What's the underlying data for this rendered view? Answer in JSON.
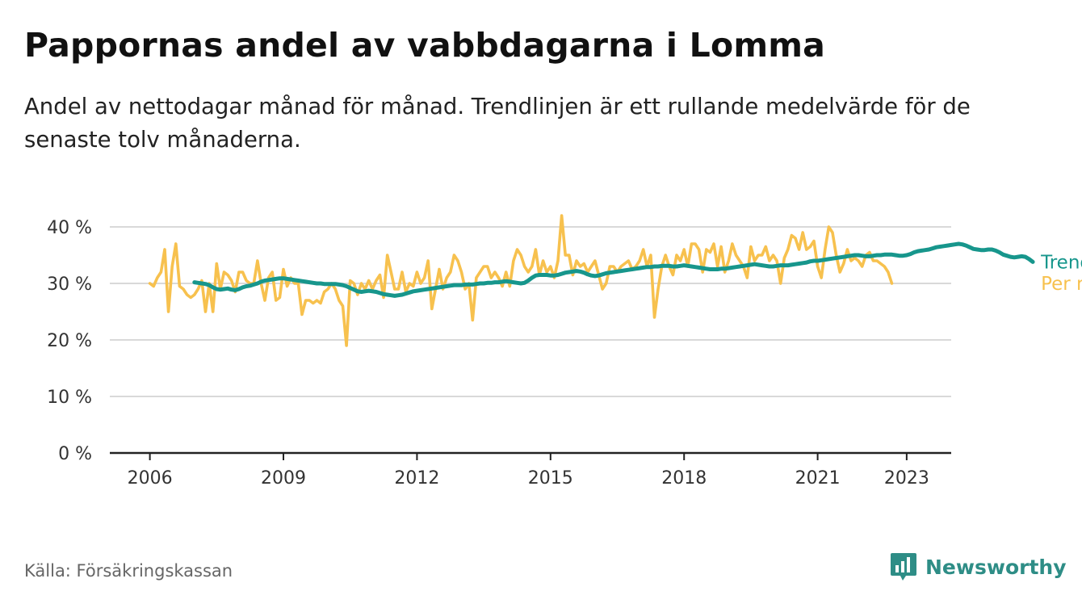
{
  "header": {
    "title": "Pappornas andel av vabbdagarna i Lomma",
    "subtitle": "Andel av nettodagar månad för månad. Trendlinjen är ett rullande medelvärde för de senaste tolv månaderna."
  },
  "footer": {
    "source": "Källa: Försäkringskassan",
    "brand": "Newsworthy",
    "brand_icon": "newsworthy-logo-icon"
  },
  "colors": {
    "monthly": "#f7c14e",
    "trend": "#17968c",
    "grid": "#d9d9d9",
    "axis": "#222222",
    "brand": "#2e8d86"
  },
  "chart_data": {
    "type": "line",
    "title": "Pappornas andel av vabbdagarna i Lomma",
    "xlabel": "",
    "ylabel": "",
    "x_start": "2006-01",
    "x_step": "month",
    "xlim": [
      2005.1,
      2024.0
    ],
    "ylim": [
      0,
      40
    ],
    "x_ticks": [
      2006,
      2009,
      2012,
      2015,
      2018,
      2021,
      2023
    ],
    "x_tick_labels": [
      "2006",
      "2009",
      "2012",
      "2015",
      "2018",
      "2021",
      "2023"
    ],
    "y_ticks": [
      0,
      10,
      20,
      30,
      40
    ],
    "y_tick_labels": [
      "0 %",
      "10 %",
      "20 %",
      "30 %",
      "40 %"
    ],
    "grid": true,
    "legend": "direct labels at line ends",
    "series": [
      {
        "name": "Per månad",
        "color": "#f7c14e",
        "values": [
          30,
          29.5,
          31,
          32,
          36,
          25,
          33,
          37,
          29.5,
          29,
          28,
          27.5,
          28,
          29,
          30.5,
          25,
          30,
          25,
          33.5,
          29,
          32,
          31.5,
          30.5,
          28.5,
          32,
          32,
          30.5,
          30,
          30,
          34,
          30,
          27,
          31,
          32,
          27,
          27.5,
          32.5,
          29.5,
          31,
          30,
          30,
          24.5,
          27,
          27,
          26.5,
          27,
          26.5,
          28.5,
          29,
          30,
          29,
          27,
          26,
          19,
          30.5,
          30,
          28,
          30,
          29,
          30.5,
          29,
          30.5,
          31.5,
          27.5,
          35,
          32,
          29,
          29,
          32,
          28.5,
          30,
          29.5,
          32,
          30,
          31,
          34,
          25.5,
          29,
          32.5,
          29,
          31,
          32,
          35,
          34,
          32,
          29,
          30,
          23.5,
          31,
          32,
          33,
          33,
          31,
          32,
          31,
          29.5,
          32,
          29.5,
          34,
          36,
          35,
          33,
          32,
          33,
          36,
          31.5,
          34,
          32,
          33,
          31,
          34,
          42,
          35,
          35,
          31.5,
          34,
          33,
          33.5,
          32,
          33,
          34,
          31.5,
          29,
          30,
          33,
          33,
          32,
          33,
          33.5,
          34,
          32.5,
          33,
          34,
          36,
          33,
          35,
          24,
          29,
          33,
          35,
          33,
          31.5,
          35,
          34,
          36,
          33,
          37,
          37,
          36,
          32,
          36,
          35.5,
          37,
          33,
          36.5,
          32,
          34,
          37,
          35,
          34,
          33,
          31,
          36.5,
          34,
          35,
          35,
          36.5,
          34,
          35,
          34,
          30,
          34.5,
          36,
          38.5,
          38,
          36,
          39,
          36,
          36.5,
          37.5,
          33,
          31,
          36,
          40,
          39,
          35,
          32,
          33.5,
          36,
          34,
          34.5,
          34,
          33,
          35,
          35.5,
          34,
          34,
          33.5,
          33,
          32,
          30
        ]
      },
      {
        "name": "Trend",
        "color": "#17968c",
        "start": "2007-01",
        "values": [
          30.2,
          30.1,
          30.0,
          29.9,
          29.7,
          29.3,
          29.0,
          28.9,
          29.0,
          29.1,
          28.9,
          28.8,
          29.0,
          29.3,
          29.5,
          29.6,
          29.8,
          30.0,
          30.3,
          30.5,
          30.6,
          30.7,
          30.8,
          30.9,
          30.9,
          30.8,
          30.7,
          30.6,
          30.5,
          30.4,
          30.3,
          30.2,
          30.1,
          30.0,
          30.0,
          29.9,
          29.9,
          29.9,
          29.9,
          29.8,
          29.7,
          29.5,
          29.2,
          28.9,
          28.6,
          28.5,
          28.6,
          28.7,
          28.6,
          28.5,
          28.3,
          28.1,
          28.0,
          27.9,
          27.8,
          27.9,
          28.0,
          28.2,
          28.4,
          28.6,
          28.7,
          28.8,
          28.9,
          29.0,
          29.1,
          29.2,
          29.3,
          29.4,
          29.5,
          29.6,
          29.7,
          29.7,
          29.7,
          29.8,
          29.8,
          29.8,
          29.9,
          30.0,
          30.0,
          30.1,
          30.1,
          30.2,
          30.2,
          30.3,
          30.4,
          30.3,
          30.2,
          30.1,
          30.0,
          30.1,
          30.5,
          31.0,
          31.4,
          31.5,
          31.5,
          31.5,
          31.4,
          31.4,
          31.5,
          31.7,
          31.9,
          32.0,
          32.1,
          32.2,
          32.1,
          31.9,
          31.6,
          31.4,
          31.3,
          31.4,
          31.6,
          31.8,
          31.9,
          32.0,
          32.1,
          32.2,
          32.3,
          32.4,
          32.5,
          32.6,
          32.7,
          32.8,
          32.9,
          32.9,
          33.0,
          33.0,
          33.1,
          33.1,
          33.1,
          33.0,
          33.0,
          33.1,
          33.2,
          33.1,
          33.0,
          32.9,
          32.8,
          32.7,
          32.6,
          32.5,
          32.5,
          32.5,
          32.6,
          32.6,
          32.7,
          32.8,
          32.9,
          33.0,
          33.1,
          33.2,
          33.3,
          33.4,
          33.3,
          33.2,
          33.1,
          33.0,
          33.0,
          33.1,
          33.2,
          33.2,
          33.2,
          33.3,
          33.4,
          33.5,
          33.6,
          33.7,
          33.9,
          34.0,
          34.0,
          34.1,
          34.2,
          34.3,
          34.4,
          34.5,
          34.6,
          34.7,
          34.8,
          34.9,
          35.0,
          35.0,
          34.9,
          34.8,
          34.8,
          34.9,
          35.0,
          35.0,
          35.1,
          35.1,
          35.1,
          35.0,
          34.9,
          34.9,
          35.0,
          35.2,
          35.5,
          35.7,
          35.8,
          35.9,
          36.0,
          36.2,
          36.4,
          36.5,
          36.6,
          36.7,
          36.8,
          36.9,
          37.0,
          36.9,
          36.7,
          36.4,
          36.1,
          36.0,
          35.9,
          35.9,
          36.0,
          36.0,
          35.8,
          35.5,
          35.1,
          34.9,
          34.7,
          34.6,
          34.7,
          34.8,
          34.7,
          34.3,
          33.8
        ]
      }
    ]
  }
}
